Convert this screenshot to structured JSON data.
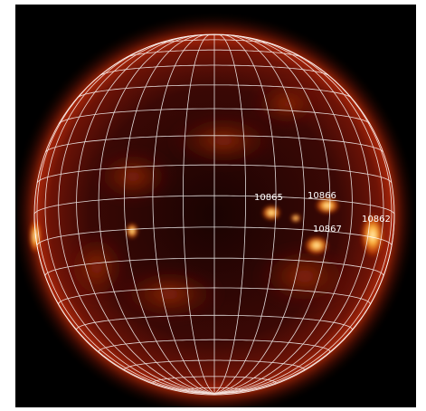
{
  "image": {
    "subject": "solar-disk-heliographic-grid",
    "colors": {
      "background": "#000000",
      "disk_base": "#2a0603",
      "glow": "#b52a08",
      "grid": "#ffffff",
      "bright_region": "#ffd27a"
    },
    "grid": {
      "latitude_step_deg": 10,
      "longitude_step_deg": 10
    },
    "active_regions": [
      {
        "number": "10865"
      },
      {
        "number": "10866"
      },
      {
        "number": "10867"
      },
      {
        "number": "10862"
      }
    ]
  }
}
